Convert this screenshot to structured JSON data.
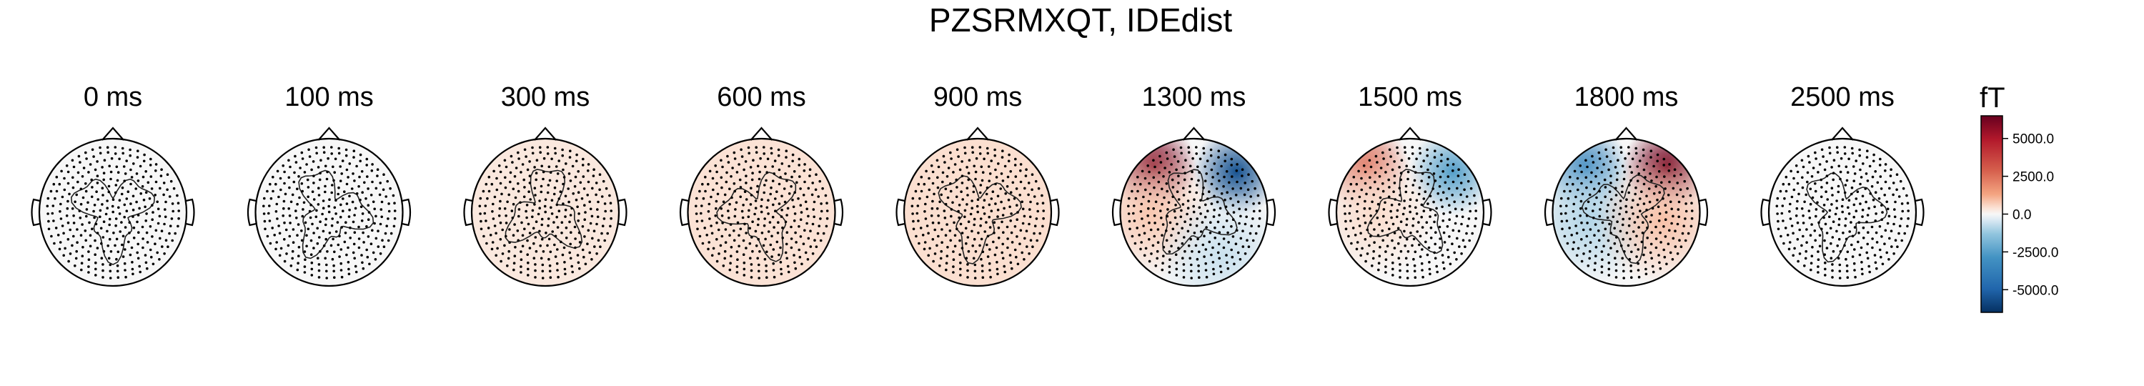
{
  "chart_data": {
    "type": "heatmap",
    "title": "PZSRMXQT, IDEdist",
    "colorbar": {
      "unit": "fT",
      "ticks": [
        5000.0,
        2500.0,
        0.0,
        -2500.0,
        -5000.0
      ],
      "tick_labels": [
        "5000.0",
        "2500.0",
        "0.0",
        "-2500.0",
        "-5000.0"
      ],
      "range": [
        -6500,
        6500
      ],
      "colormap": "RdBu_r",
      "colors": {
        "min": "#0b3a78",
        "mid": "#f7f7f7",
        "max": "#7a0019"
      }
    },
    "series": [
      {
        "time": "0 ms",
        "bias": 0,
        "poles": []
      },
      {
        "time": "100 ms",
        "bias": 0,
        "poles": []
      },
      {
        "time": "300 ms",
        "bias": 300,
        "poles": []
      },
      {
        "time": "600 ms",
        "bias": 400,
        "poles": []
      },
      {
        "time": "900 ms",
        "bias": 450,
        "poles": []
      },
      {
        "time": "1300 ms",
        "bias": 0,
        "poles": [
          {
            "x": -0.55,
            "y": 0.62,
            "amp": 6000
          },
          {
            "x": 0.58,
            "y": 0.55,
            "amp": -5500
          },
          {
            "x": -0.6,
            "y": 0.0,
            "amp": 800
          },
          {
            "x": 0.4,
            "y": -0.6,
            "amp": -600
          }
        ]
      },
      {
        "time": "1500 ms",
        "bias": 0,
        "poles": [
          {
            "x": -0.6,
            "y": 0.62,
            "amp": 2800
          },
          {
            "x": 0.58,
            "y": 0.55,
            "amp": -2500
          },
          {
            "x": -0.5,
            "y": 0.0,
            "amp": 500
          }
        ]
      },
      {
        "time": "1800 ms",
        "bias": 0,
        "poles": [
          {
            "x": -0.55,
            "y": 0.6,
            "amp": -3500
          },
          {
            "x": 0.55,
            "y": 0.62,
            "amp": 6200
          },
          {
            "x": -0.5,
            "y": -0.1,
            "amp": -900
          },
          {
            "x": 0.5,
            "y": -0.1,
            "amp": 900
          }
        ]
      },
      {
        "time": "2500 ms",
        "bias": 0,
        "poles": []
      }
    ]
  }
}
